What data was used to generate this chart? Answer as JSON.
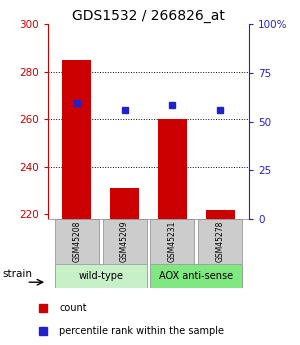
{
  "title": "GDS1532 / 266826_at",
  "samples": [
    "GSM45208",
    "GSM45209",
    "GSM45231",
    "GSM45278"
  ],
  "red_values": [
    285,
    231,
    260,
    222
  ],
  "blue_values": [
    267,
    264,
    266,
    264
  ],
  "ylim_left": [
    218,
    300
  ],
  "ylim_right": [
    0,
    100
  ],
  "yticks_left": [
    220,
    240,
    260,
    280,
    300
  ],
  "yticks_right": [
    0,
    25,
    50,
    75,
    100
  ],
  "ytick_right_labels": [
    "0",
    "25",
    "50",
    "75",
    "100%"
  ],
  "groups": [
    {
      "label": "wild-type",
      "indices": [
        0,
        1
      ],
      "color": "#c8f0c8"
    },
    {
      "label": "AOX anti-sense",
      "indices": [
        2,
        3
      ],
      "color": "#80e880"
    }
  ],
  "strain_label": "strain",
  "legend_red": "count",
  "legend_blue": "percentile rank within the sample",
  "bar_color": "#cc0000",
  "blue_color": "#2222cc",
  "left_axis_color": "#cc0000",
  "right_axis_color": "#2222cc",
  "sample_box_color": "#cccccc",
  "title_fontsize": 10,
  "bar_width": 0.6,
  "grid_yticks": [
    240,
    260,
    280
  ]
}
